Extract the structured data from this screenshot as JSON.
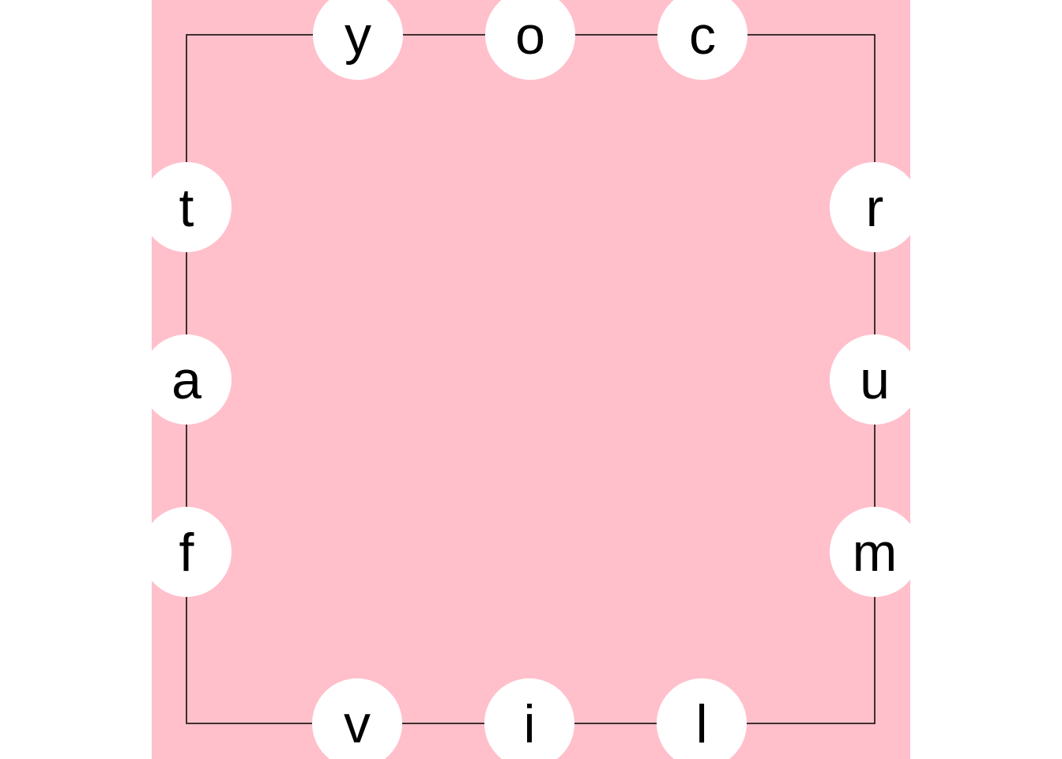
{
  "colors": {
    "page_background": "#ffffff",
    "board_background": "#ffc0cb",
    "circle_fill": "#ffffff",
    "outline": "#000000",
    "letter": "#000000"
  },
  "puzzle": {
    "sides": {
      "top": [
        "y",
        "o",
        "c"
      ],
      "right": [
        "r",
        "u",
        "m"
      ],
      "bottom": [
        "v",
        "i",
        "l"
      ],
      "left": [
        "t",
        "a",
        "f"
      ]
    }
  }
}
